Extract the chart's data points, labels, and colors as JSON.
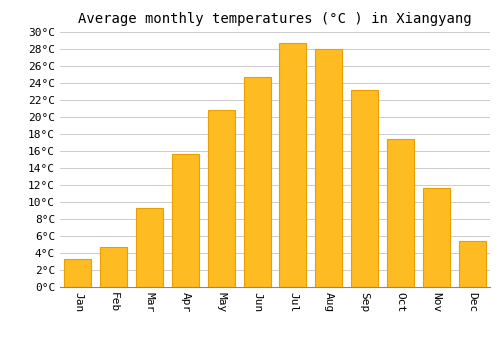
{
  "title": "Average monthly temperatures (°C ) in Xiangyang",
  "months": [
    "Jan",
    "Feb",
    "Mar",
    "Apr",
    "May",
    "Jun",
    "Jul",
    "Aug",
    "Sep",
    "Oct",
    "Nov",
    "Dec"
  ],
  "values": [
    3.3,
    4.7,
    9.3,
    15.6,
    20.8,
    24.7,
    28.7,
    27.9,
    23.1,
    17.4,
    11.6,
    5.4
  ],
  "bar_color": "#FFBB22",
  "bar_edge_color": "#E8A000",
  "ylim": [
    0,
    30
  ],
  "ytick_step": 2,
  "background_color": "#FFFFFF",
  "grid_color": "#CCCCCC",
  "title_fontsize": 10,
  "tick_fontsize": 8,
  "font_family": "monospace"
}
